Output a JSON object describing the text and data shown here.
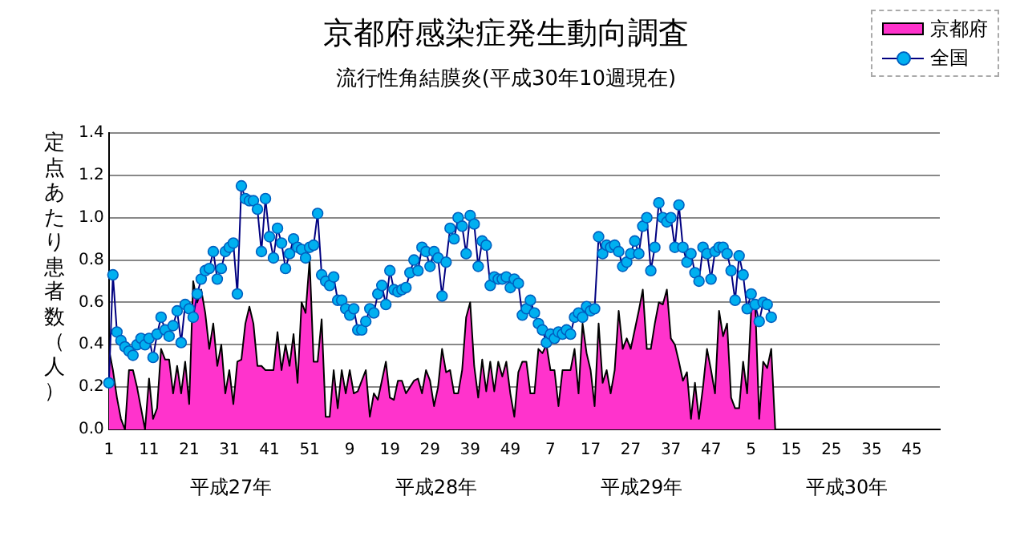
{
  "chart_data": {
    "type": "line",
    "title": "京都府感染症発生動向調査",
    "subtitle": "流行性角結膜炎(平成30年10週現在)",
    "ylabel": "定点あたり患者数（人）",
    "categories": [
      "1",
      null,
      null,
      null,
      null,
      null,
      null,
      null,
      null,
      null,
      "11",
      null,
      null,
      null,
      null,
      null,
      null,
      null,
      null,
      null,
      "21",
      null,
      null,
      null,
      null,
      null,
      null,
      null,
      null,
      null,
      "31",
      null,
      null,
      null,
      null,
      null,
      null,
      null,
      null,
      null,
      "41",
      null,
      null,
      null,
      null,
      null,
      null,
      null,
      null,
      null,
      "51",
      null,
      null,
      null,
      null,
      null,
      null,
      null,
      null,
      null,
      "9",
      null,
      null,
      null,
      null,
      null,
      null,
      null,
      null,
      null,
      "19",
      null,
      null,
      null,
      null,
      null,
      null,
      null,
      null,
      null,
      "29",
      null,
      null,
      null,
      null,
      null,
      null,
      null,
      null,
      null,
      "39",
      null,
      null,
      null,
      null,
      null,
      null,
      null,
      null,
      null,
      "49",
      null,
      null,
      null,
      null,
      null,
      null,
      null,
      null,
      null,
      "7",
      null,
      null,
      null,
      null,
      null,
      null,
      null,
      null,
      null,
      "17",
      null,
      null,
      null,
      null,
      null,
      null,
      null,
      null,
      null,
      "27",
      null,
      null,
      null,
      null,
      null,
      null,
      null,
      null,
      null,
      "37",
      null,
      null,
      null,
      null,
      null,
      null,
      null,
      null,
      null,
      "47",
      null,
      null,
      null,
      null,
      null,
      null,
      null,
      null,
      null,
      "5",
      null,
      null,
      null,
      null,
      null,
      null,
      null,
      null,
      null,
      "15",
      null,
      null,
      null,
      null,
      null,
      null,
      null,
      null,
      null,
      "25",
      null,
      null,
      null,
      null,
      null,
      null,
      null,
      null,
      null,
      "35",
      null,
      null,
      null,
      null,
      null,
      null,
      null,
      null,
      null,
      "45",
      null,
      null,
      null,
      null,
      null,
      null,
      null
    ],
    "series": [
      {
        "name": "京都府",
        "type": "area",
        "color": "#ff33cc",
        "values": [
          0.38,
          0.28,
          0.15,
          0.05,
          0.0,
          0.28,
          0.28,
          0.2,
          0.1,
          0.0,
          0.24,
          0.05,
          0.1,
          0.38,
          0.33,
          0.33,
          0.17,
          0.3,
          0.17,
          0.32,
          0.12,
          0.7,
          0.6,
          0.66,
          0.55,
          0.38,
          0.5,
          0.3,
          0.4,
          0.17,
          0.28,
          0.12,
          0.32,
          0.33,
          0.5,
          0.58,
          0.5,
          0.3,
          0.3,
          0.28,
          0.28,
          0.28,
          0.46,
          0.28,
          0.4,
          0.3,
          0.45,
          0.22,
          0.6,
          0.55,
          0.8,
          0.32,
          0.32,
          0.52,
          0.06,
          0.06,
          0.28,
          0.1,
          0.28,
          0.17,
          0.28,
          0.17,
          0.18,
          0.23,
          0.28,
          0.06,
          0.17,
          0.14,
          0.23,
          0.32,
          0.15,
          0.14,
          0.23,
          0.23,
          0.17,
          0.2,
          0.23,
          0.24,
          0.17,
          0.28,
          0.23,
          0.11,
          0.2,
          0.38,
          0.27,
          0.28,
          0.17,
          0.17,
          0.28,
          0.53,
          0.6,
          0.3,
          0.15,
          0.33,
          0.18,
          0.32,
          0.18,
          0.32,
          0.25,
          0.32,
          0.17,
          0.06,
          0.27,
          0.32,
          0.32,
          0.17,
          0.17,
          0.38,
          0.36,
          0.4,
          0.28,
          0.28,
          0.11,
          0.28,
          0.28,
          0.28,
          0.38,
          0.17,
          0.5,
          0.36,
          0.28,
          0.11,
          0.5,
          0.22,
          0.28,
          0.17,
          0.28,
          0.56,
          0.38,
          0.43,
          0.38,
          0.47,
          0.56,
          0.66,
          0.38,
          0.38,
          0.5,
          0.6,
          0.59,
          0.66,
          0.43,
          0.4,
          0.32,
          0.23,
          0.27,
          0.05,
          0.22,
          0.05,
          0.2,
          0.38,
          0.28,
          0.17,
          0.56,
          0.44,
          0.5,
          0.15,
          0.1,
          0.1,
          0.32,
          0.17,
          0.56,
          0.6,
          0.05,
          0.32,
          0.29,
          0.38,
          0.0,
          null,
          null,
          null,
          null,
          null,
          null,
          null,
          null,
          null,
          null,
          null,
          null,
          null,
          null,
          null,
          null,
          null,
          null,
          null,
          null,
          null,
          null,
          null,
          null,
          null,
          null,
          null,
          null,
          null,
          null,
          null,
          null,
          null,
          null,
          null,
          null,
          null,
          null,
          null,
          null,
          null
        ]
      },
      {
        "name": "全国",
        "color": "#00b0f0",
        "marker": "circle",
        "values": [
          0.22,
          0.73,
          0.46,
          0.42,
          0.39,
          0.37,
          0.35,
          0.4,
          0.43,
          0.4,
          0.43,
          0.34,
          0.45,
          0.53,
          0.47,
          0.44,
          0.49,
          0.56,
          0.41,
          0.59,
          0.57,
          0.53,
          0.64,
          0.71,
          0.75,
          0.76,
          0.84,
          0.71,
          0.76,
          0.84,
          0.86,
          0.88,
          0.64,
          1.15,
          1.09,
          1.08,
          1.08,
          1.04,
          0.84,
          1.09,
          0.91,
          0.81,
          0.95,
          0.88,
          0.76,
          0.83,
          0.9,
          0.86,
          0.85,
          0.81,
          0.86,
          0.87,
          1.02,
          0.73,
          0.7,
          0.68,
          0.72,
          0.61,
          0.61,
          0.57,
          0.54,
          0.57,
          0.47,
          0.47,
          0.51,
          0.57,
          0.55,
          0.64,
          0.68,
          0.59,
          0.75,
          0.66,
          0.65,
          0.66,
          0.67,
          0.74,
          0.8,
          0.75,
          0.86,
          0.84,
          0.77,
          0.84,
          0.81,
          0.63,
          0.79,
          0.95,
          0.9,
          1.0,
          0.96,
          0.83,
          1.01,
          0.97,
          0.77,
          0.89,
          0.87,
          0.68,
          0.72,
          0.71,
          0.71,
          0.72,
          0.67,
          0.71,
          0.69,
          0.54,
          0.57,
          0.61,
          0.55,
          0.5,
          0.47,
          0.41,
          0.45,
          0.43,
          0.46,
          0.45,
          0.47,
          0.45,
          0.53,
          0.55,
          0.53,
          0.58,
          0.56,
          0.57,
          0.91,
          0.83,
          0.87,
          0.86,
          0.87,
          0.84,
          0.77,
          0.79,
          0.83,
          0.89,
          0.83,
          0.96,
          1.0,
          0.75,
          0.86,
          1.07,
          1.0,
          0.98,
          1.0,
          0.86,
          1.06,
          0.86,
          0.79,
          0.83,
          0.74,
          0.7,
          0.86,
          0.83,
          0.71,
          0.84,
          0.86,
          0.86,
          0.83,
          0.75,
          0.61,
          0.82,
          0.73,
          0.57,
          0.64,
          0.59,
          0.51,
          0.6,
          0.59,
          0.53,
          null,
          null,
          null,
          null,
          null,
          null,
          null,
          null,
          null,
          null,
          null,
          null,
          null,
          null,
          null,
          null,
          null,
          null,
          null,
          null,
          null,
          null,
          null,
          null,
          null,
          null,
          null,
          null,
          null,
          null,
          null,
          null,
          null,
          null,
          null,
          null,
          null,
          null,
          null,
          null,
          null,
          null
        ]
      }
    ],
    "ylim": [
      0,
      1.4
    ],
    "yticks": [
      {
        "value": 0,
        "label": "0.0"
      },
      {
        "value": 0.2,
        "label": "0.2"
      },
      {
        "value": 0.4,
        "label": "0.4"
      },
      {
        "value": 0.6,
        "label": "0.6"
      },
      {
        "value": 0.8,
        "label": "0.8"
      },
      {
        "value": 1.0,
        "label": "1.0"
      },
      {
        "value": 1.2,
        "label": "1.2"
      },
      {
        "value": 1.4,
        "label": "1.4"
      }
    ],
    "grid": "y",
    "legend": "top right",
    "annotations": [
      "平成27年",
      "平成28年",
      "平成29年",
      "平成30年"
    ]
  }
}
